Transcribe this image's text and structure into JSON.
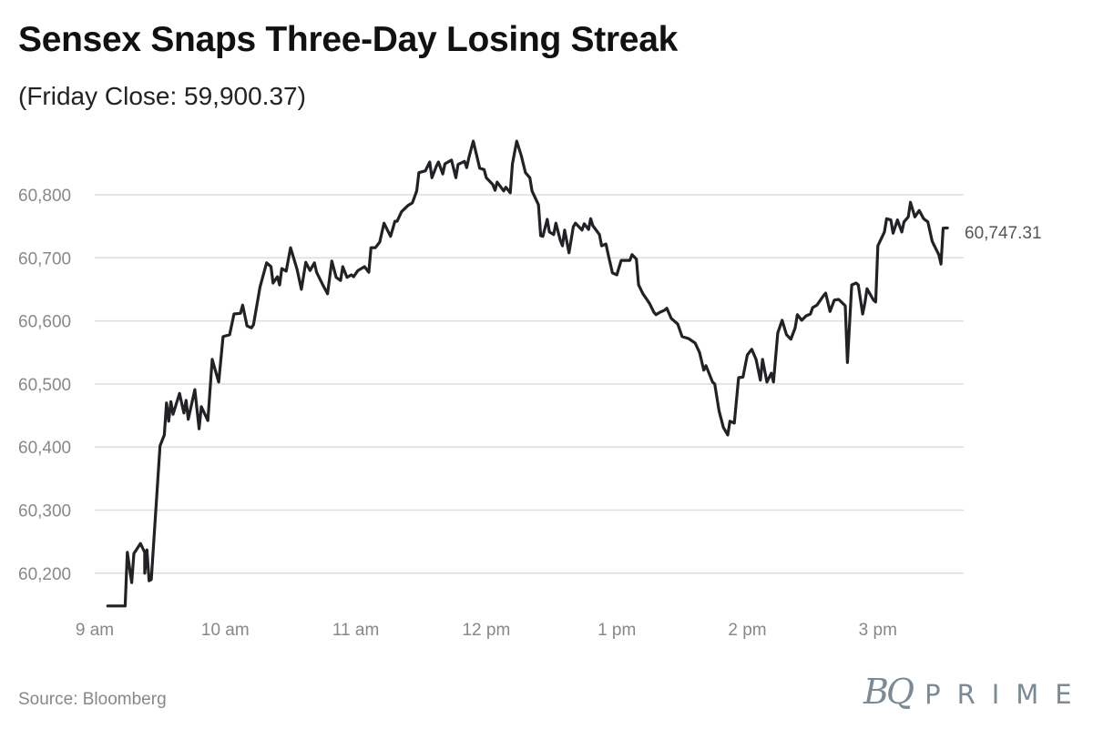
{
  "title": "Sensex Snaps Three-Day Losing Streak",
  "subtitle": "(Friday Close: 59,900.37)",
  "source": "Source: Bloomberg",
  "logo": {
    "bq": "BQ",
    "prime": "PRIME"
  },
  "colors": {
    "line": "#222226",
    "grid": "#dddddd",
    "tick": "#888888",
    "logo": "#7b8a93"
  },
  "chart_data": {
    "type": "line",
    "title": "Sensex Snaps Three-Day Losing Streak",
    "subtitle": "(Friday Close: 59,900.37)",
    "xlabel": "",
    "ylabel": "",
    "grid": true,
    "ylim": [
      60100,
      60900
    ],
    "yticks": [
      60200,
      60300,
      60400,
      60500,
      60600,
      60700,
      60800
    ],
    "ytick_labels": [
      "60,200",
      "60,300",
      "60,400",
      "60,500",
      "60,600",
      "60,700",
      "60,800"
    ],
    "xticks": [
      "09:00",
      "10:00",
      "11:00",
      "12:00",
      "13:00",
      "14:00",
      "15:00"
    ],
    "xtick_labels": [
      "9 am",
      "10 am",
      "11 am",
      "12 pm",
      "1 pm",
      "2 pm",
      "3 pm"
    ],
    "end_label": "60,747.31",
    "series": [
      {
        "x": [
          "09:06",
          "09:14",
          "09:15",
          "09:17",
          "09:18",
          "09:21",
          "09:23",
          "09:23",
          "09:24",
          "09:25",
          "09:26",
          "09:30",
          "09:32",
          "09:33",
          "09:34",
          "09:35",
          "09:36",
          "09:39",
          "09:41",
          "09:42",
          "09:43",
          "09:46",
          "09:48",
          "09:49",
          "09:52",
          "09:54",
          "09:57",
          "09:59",
          "10:02",
          "10:04",
          "10:07",
          "10:08",
          "10:10",
          "10:12",
          "10:13",
          "10:16",
          "10:19",
          "10:21",
          "10:22",
          "10:24",
          "10:25",
          "10:26",
          "10:28",
          "10:30",
          "10:33",
          "10:35",
          "10:37",
          "10:39",
          "10:41",
          "10:42",
          "10:45",
          "10:47",
          "10:49",
          "10:51",
          "10:53",
          "10:54",
          "10:56",
          "10:58",
          "10:59",
          "11:01",
          "11:04",
          "11:06",
          "11:07",
          "11:09",
          "11:11",
          "11:13",
          "11:16",
          "11:18",
          "11:19",
          "11:21",
          "11:24",
          "11:26",
          "11:28",
          "11:29",
          "11:32",
          "11:34",
          "11:35",
          "11:37",
          "11:38",
          "11:40",
          "11:41",
          "11:44",
          "11:46",
          "11:47",
          "11:50",
          "11:51",
          "11:52",
          "11:54",
          "11:57",
          "11:59",
          "12:00",
          "12:03",
          "12:04",
          "12:05",
          "12:08",
          "12:09",
          "12:11",
          "12:12",
          "12:14",
          "12:16",
          "12:18",
          "12:20",
          "12:21",
          "12:24",
          "12:25",
          "12:26",
          "12:28",
          "12:29",
          "12:31",
          "12:32",
          "12:34",
          "12:35",
          "12:36",
          "12:38",
          "12:40",
          "12:41",
          "12:44",
          "12:45",
          "12:47",
          "12:48",
          "12:49",
          "12:52",
          "12:53",
          "12:55",
          "12:56",
          "12:58",
          "13:00",
          "13:02",
          "13:05",
          "13:06",
          "13:07",
          "13:09",
          "13:10",
          "13:12",
          "13:15",
          "13:17",
          "13:18",
          "13:20",
          "13:22",
          "13:23",
          "13:25",
          "13:28",
          "13:30",
          "13:33",
          "13:36",
          "13:38",
          "13:40",
          "13:41",
          "13:44",
          "13:45",
          "13:47",
          "13:49",
          "13:51",
          "13:52",
          "13:54",
          "13:56",
          "13:58",
          "14:00",
          "14:02",
          "14:04",
          "14:06",
          "14:07",
          "14:09",
          "14:11",
          "14:12",
          "14:14",
          "14:16",
          "14:18",
          "14:20",
          "14:22",
          "14:23",
          "14:25",
          "14:27",
          "14:29",
          "14:30",
          "14:32",
          "14:35",
          "14:36",
          "14:38",
          "14:40",
          "14:42",
          "14:45",
          "14:46",
          "14:48",
          "14:50",
          "14:51",
          "14:53",
          "14:54",
          "14:55",
          "14:58",
          "14:59",
          "15:00",
          "15:03",
          "15:04",
          "15:06",
          "15:07",
          "15:09",
          "15:11",
          "15:12",
          "15:14",
          "15:15",
          "15:17",
          "15:19",
          "15:21",
          "15:23",
          "15:25",
          "15:26",
          "15:28",
          "15:29",
          "15:30",
          "15:32"
        ],
        "y": [
          60148,
          60148,
          60233,
          60185,
          60231,
          60247,
          60233,
          60200,
          60237,
          60188,
          60190,
          60402,
          60419,
          60470,
          60441,
          60472,
          60452,
          60485,
          60454,
          60474,
          60444,
          60491,
          60429,
          60464,
          60442,
          60539,
          60503,
          60575,
          60578,
          60611,
          60612,
          60625,
          60592,
          60589,
          60594,
          60654,
          60692,
          60686,
          60660,
          60670,
          60657,
          60683,
          60679,
          60716,
          60682,
          60650,
          60693,
          60680,
          60692,
          60677,
          60656,
          60643,
          60695,
          60669,
          60664,
          60686,
          60669,
          60673,
          60670,
          60680,
          60686,
          60677,
          60716,
          60716,
          60725,
          60755,
          60734,
          60758,
          60758,
          60773,
          60783,
          60787,
          60806,
          60835,
          60838,
          60852,
          60827,
          60845,
          60852,
          60833,
          60849,
          60855,
          60827,
          60848,
          60853,
          60843,
          60859,
          60885,
          60842,
          60840,
          60827,
          60816,
          60807,
          60820,
          60806,
          60812,
          60803,
          60849,
          60885,
          60863,
          60835,
          60827,
          60806,
          60784,
          60735,
          60734,
          60761,
          60741,
          60737,
          60755,
          60728,
          60719,
          60744,
          60708,
          60749,
          60755,
          60744,
          60754,
          60745,
          60762,
          60751,
          60737,
          60719,
          60722,
          60706,
          60676,
          60673,
          60696,
          60696,
          60696,
          60705,
          60698,
          60657,
          60643,
          60628,
          60614,
          60610,
          60614,
          60617,
          60620,
          60604,
          60595,
          60575,
          60572,
          60565,
          60550,
          60522,
          60529,
          60503,
          60500,
          60457,
          60431,
          60419,
          60441,
          60438,
          60510,
          60511,
          60546,
          60555,
          60539,
          60506,
          60539,
          60503,
          60517,
          60503,
          60581,
          60601,
          60578,
          60571,
          60589,
          60610,
          60601,
          60608,
          60611,
          60621,
          60625,
          60640,
          60644,
          60615,
          60633,
          60634,
          60624,
          60534,
          60657,
          60660,
          60657,
          60611,
          60628,
          60651,
          60633,
          60630,
          60719,
          60741,
          60762,
          60760,
          60739,
          60760,
          60741,
          60757,
          60765,
          60788,
          60765,
          60775,
          60762,
          60757,
          60726,
          60719,
          60705,
          60690,
          60747,
          60747.31
        ]
      }
    ]
  }
}
